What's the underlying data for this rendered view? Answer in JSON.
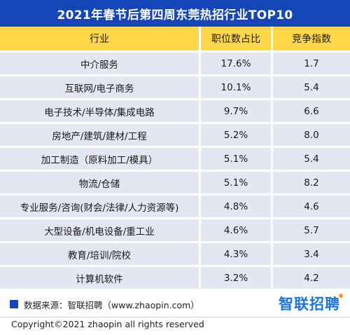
{
  "title": "2021年春节后第四周东莞热招行业TOP10",
  "table": {
    "headers": [
      "行业",
      "职位数占比",
      "竞争指数"
    ],
    "rows": [
      [
        "中介服务",
        "17.6%",
        "1.7"
      ],
      [
        "互联网/电子商务",
        "10.1%",
        "5.4"
      ],
      [
        "电子技术/半导体/集成电路",
        "9.7%",
        "6.6"
      ],
      [
        "房地产/建筑/建材/工程",
        "5.2%",
        "8.0"
      ],
      [
        "加工制造（原料加工/模具）",
        "5.1%",
        "5.4"
      ],
      [
        "物流/仓储",
        "5.1%",
        "8.2"
      ],
      [
        "专业服务/咨询(财会/法律/人力资源等)",
        "4.8%",
        "4.6"
      ],
      [
        "大型设备/机电设备/重工业",
        "4.6%",
        "5.7"
      ],
      [
        "教育/培训/院校",
        "4.3%",
        "3.4"
      ],
      [
        "计算机软件",
        "3.2%",
        "4.2"
      ]
    ]
  },
  "footer": {
    "source": "数据来源：智联招聘（www.zhaopin.com）",
    "copyright": "Copyright©2021 zhaopin all rights reserved",
    "brand": "智联招聘"
  },
  "colors": {
    "title_bg": "#1546b8",
    "header_bg": "#ffd84a",
    "row_bg": "#e4e6f2",
    "brand": "#1a74e8"
  }
}
